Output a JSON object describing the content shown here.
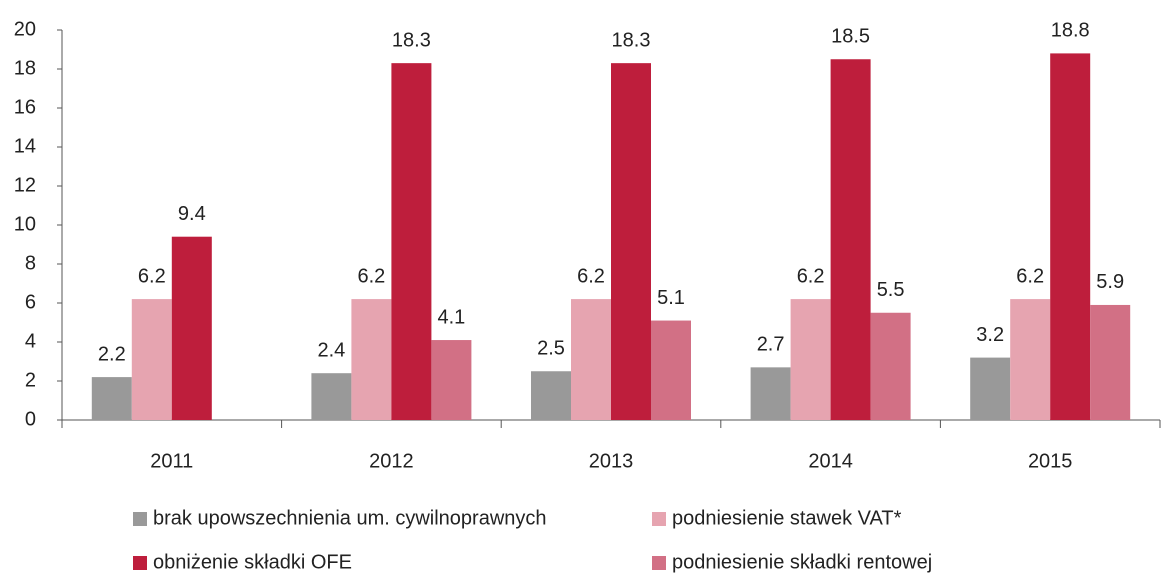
{
  "chart_data": {
    "type": "bar",
    "categories": [
      "2011",
      "2012",
      "2013",
      "2014",
      "2015"
    ],
    "series": [
      {
        "name": "brak upowszechnienia um. cywilnoprawnych",
        "color": "#999999",
        "values": [
          2.2,
          2.4,
          2.5,
          2.7,
          3.2
        ]
      },
      {
        "name": "podniesienie stawek VAT*",
        "color": "#e6a4b0",
        "values": [
          6.2,
          6.2,
          6.2,
          6.2,
          6.2
        ]
      },
      {
        "name": "obniżenie składki OFE",
        "color": "#be1e3c",
        "values": [
          9.4,
          18.3,
          18.3,
          18.5,
          18.8
        ]
      },
      {
        "name": "podniesienie składki rentowej",
        "color": "#d27085",
        "values": [
          null,
          4.1,
          5.1,
          5.5,
          5.9
        ]
      }
    ],
    "ylim": [
      0,
      20
    ],
    "yticks": [
      0,
      2,
      4,
      6,
      8,
      10,
      12,
      14,
      16,
      18,
      20
    ],
    "grid": false
  }
}
